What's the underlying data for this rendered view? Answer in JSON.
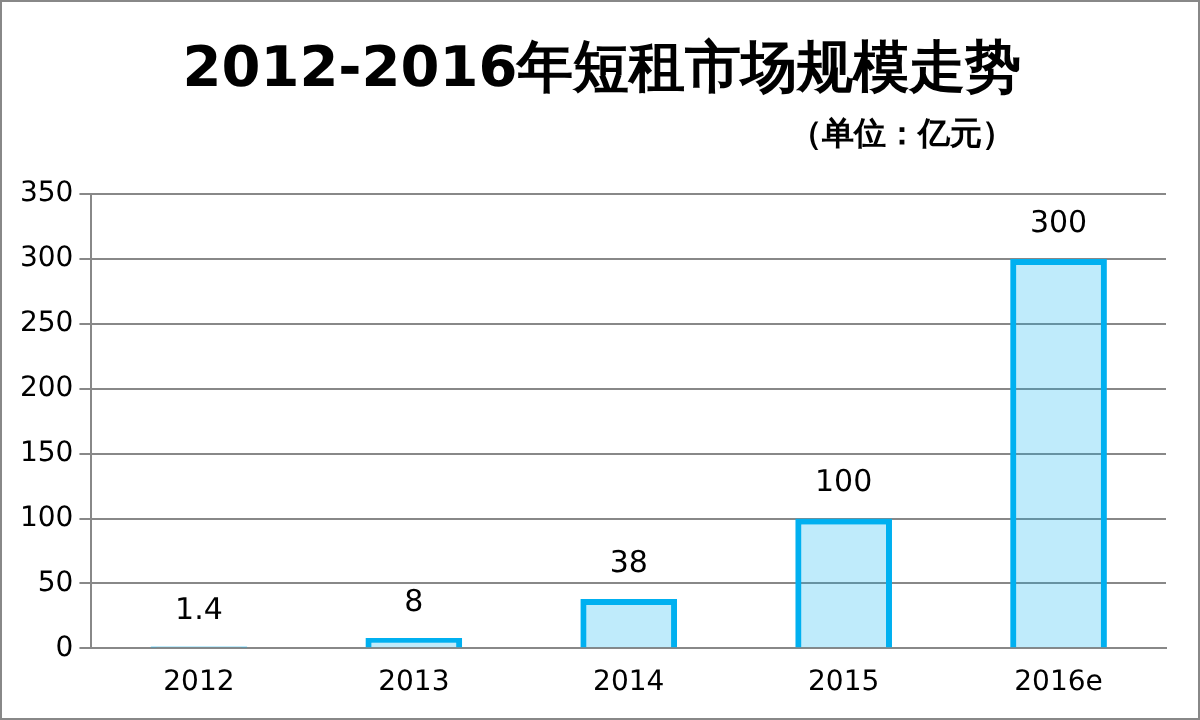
{
  "chart_data": {
    "type": "bar",
    "title": "2012-2016年短租市场规模走势",
    "subtitle": "（单位：亿元）",
    "categories": [
      "2012",
      "2013",
      "2014",
      "2015",
      "2016e"
    ],
    "values": [
      1.4,
      8,
      38,
      100,
      300
    ],
    "color": "#00b0f0",
    "ylim": [
      0,
      350
    ],
    "yticks": [
      0,
      50,
      100,
      150,
      200,
      250,
      300,
      350
    ],
    "grid": "y",
    "data_labels": true
  }
}
